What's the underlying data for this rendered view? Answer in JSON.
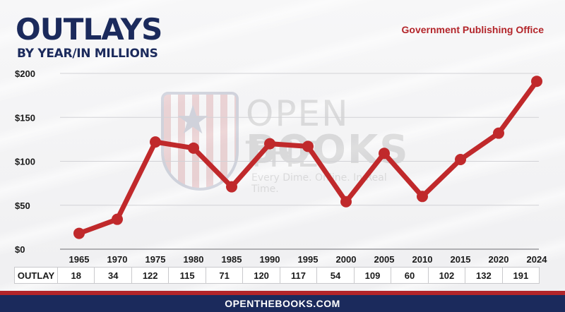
{
  "header": {
    "title": "OUTLAYS",
    "subtitle": "BY YEAR/IN MILLIONS",
    "source": "Government Publishing Office"
  },
  "watermark": {
    "line1": "OPEN THE",
    "line2": "BOOKS",
    "tagline": "Every Dime. Online. In Real Time."
  },
  "table": {
    "row_label": "OUTLAY"
  },
  "footer": {
    "url": "OPENTHEBOOKS.COM"
  },
  "colors": {
    "line": "#c0292b",
    "title": "#1b2a5c",
    "accent_red": "#b3252a"
  },
  "chart_data": {
    "type": "line",
    "title": "OUTLAYS",
    "subtitle": "BY YEAR/IN MILLIONS",
    "categories": [
      "1965",
      "1970",
      "1975",
      "1980",
      "1985",
      "1990",
      "1995",
      "2000",
      "2005",
      "2010",
      "2015",
      "2020",
      "2024"
    ],
    "series": [
      {
        "values": [
          18,
          34,
          122,
          115,
          71,
          120,
          117,
          54,
          109,
          60,
          102,
          132,
          191
        ]
      }
    ],
    "ylim": [
      0,
      200
    ],
    "yticks": [
      0,
      50,
      100,
      150,
      200
    ],
    "ytick_labels": [
      "$0",
      "$50",
      "$100",
      "$150",
      "$200"
    ],
    "grid": true,
    "legend": "none"
  }
}
